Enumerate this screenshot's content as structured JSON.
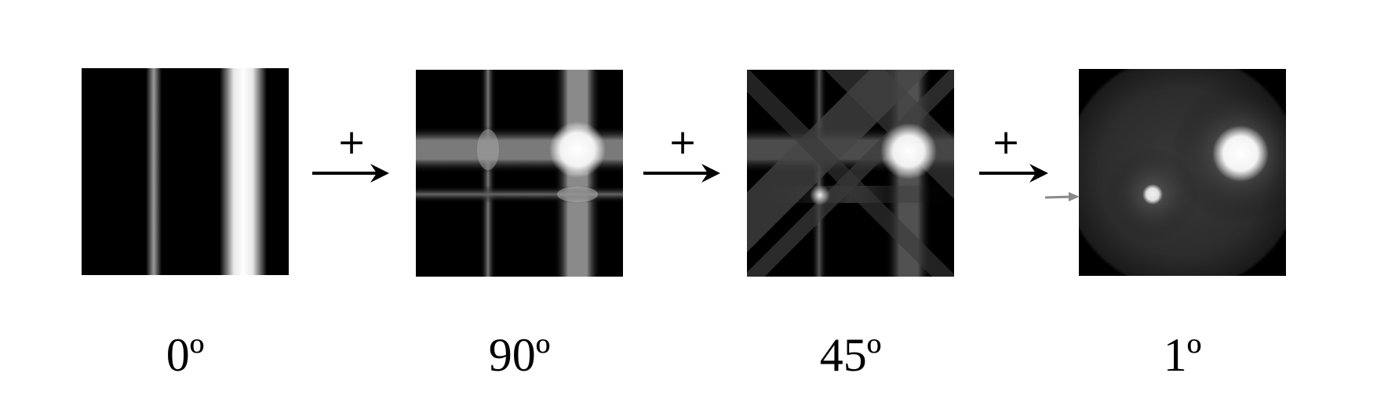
{
  "panels": [
    {
      "angle_label": "0º",
      "image": "single vertical-projection backprojection (two vertical bands)"
    },
    {
      "angle_label": "90º",
      "image": "sum of 0º and 90º backprojections (cross pattern)"
    },
    {
      "angle_label": "45º",
      "image": "sum of 0º, 90º and 45º backprojections"
    },
    {
      "angle_label": "1º",
      "image": "sum of backprojections at 1º steps (reconstructed disc with two bright spots)"
    }
  ],
  "operators": [
    {
      "symbol": "+"
    },
    {
      "symbol": "+"
    },
    {
      "symbol": "+"
    }
  ],
  "colors": {
    "background": "#ffffff",
    "panel_bg": "#000000",
    "arrow": "#000000",
    "small_arrow": "#8a8a8a"
  }
}
